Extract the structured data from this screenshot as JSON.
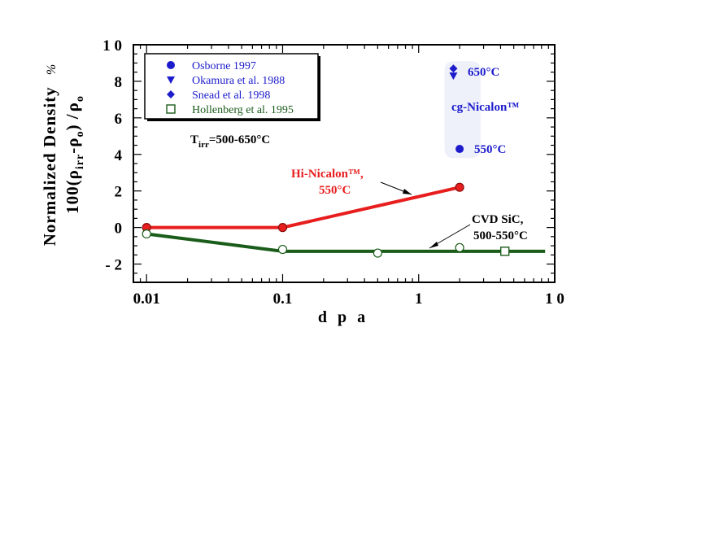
{
  "chart_data": {
    "type": "scatter",
    "x_scale": "log",
    "xlim": [
      0.008,
      10
    ],
    "ylim": [
      -3,
      10
    ],
    "x_ticks": [
      {
        "value": 0.01,
        "label": "0.01"
      },
      {
        "value": 0.1,
        "label": "0.1"
      },
      {
        "value": 1,
        "label": "1"
      },
      {
        "value": 10,
        "label": "1 0"
      }
    ],
    "y_ticks": [
      {
        "value": 10,
        "label": "1 0"
      },
      {
        "value": 8,
        "label": "8"
      },
      {
        "value": 6,
        "label": "6"
      },
      {
        "value": 4,
        "label": "4"
      },
      {
        "value": 2,
        "label": "2"
      },
      {
        "value": 0,
        "label": "0"
      },
      {
        "value": -2,
        "label": "- 2"
      }
    ],
    "xlabel": "d p a",
    "ylabel": {
      "line1": "Normalized  Density",
      "unit": "%",
      "line2_prefix": "100(",
      "rho": "ρ",
      "irr": "irr",
      "minus": "-",
      "o": "o",
      "close": ")  /"
    },
    "legend": {
      "position": "top-left",
      "entries": [
        {
          "label": "Osborne 1997",
          "marker": "circle-filled",
          "color": "#1c1ccc"
        },
        {
          "label": "Okamura et al. 1988",
          "marker": "triangle-down-filled",
          "color": "#1c1ccc"
        },
        {
          "label": "Snead et al. 1998",
          "marker": "diamond-filled",
          "color": "#1c1ccc"
        },
        {
          "label": "Hollenberg et al. 1995",
          "marker": "square-open",
          "color": "#1a5c1a"
        }
      ]
    },
    "series": [
      {
        "name": "Hi-Nicalon™",
        "color": "#e81e1e",
        "marker": "circle-filled-red",
        "points": [
          {
            "x": 0.01,
            "y": 0
          },
          {
            "x": 0.1,
            "y": 0
          },
          {
            "x": 2,
            "y": 2.2
          }
        ],
        "line": [
          {
            "x": 0.01,
            "y": 0
          },
          {
            "x": 0.1,
            "y": 0
          },
          {
            "x": 2,
            "y": 2.2
          }
        ]
      },
      {
        "name": "CVD SiC",
        "color": "#1a5c1a",
        "marker": "circle-open",
        "points": [
          {
            "x": 0.01,
            "y": -0.35
          },
          {
            "x": 0.1,
            "y": -1.2
          },
          {
            "x": 0.5,
            "y": -1.4
          },
          {
            "x": 2,
            "y": -1.1
          }
        ],
        "hollenberg_points": [
          {
            "x": 4.3,
            "y": -1.3
          }
        ],
        "line": [
          {
            "x": 0.01,
            "y": -0.35
          },
          {
            "x": 0.1,
            "y": -1.3
          },
          {
            "x": 8.5,
            "y": -1.3
          }
        ]
      },
      {
        "name": "cg-Nicalon™",
        "color": "#1c1ccc",
        "points": [
          {
            "x": 2,
            "y": 4.3,
            "marker": "circle-filled"
          },
          {
            "x": 1.8,
            "y": 8.3,
            "marker": "triangle-down-filled"
          },
          {
            "x": 1.8,
            "y": 8.7,
            "marker": "diamond-filled"
          }
        ]
      }
    ],
    "shaded_region": {
      "x": [
        1.55,
        2.85
      ],
      "y": [
        3.8,
        9.1
      ],
      "color": "#eef0fa"
    },
    "annotations": {
      "tirr_prefix": "T",
      "tirr_sub": "irr",
      "tirr_value": "=500-650°C",
      "hinicalon_line1": "Hi-Nicalon™,",
      "hinicalon_line2": "550°C",
      "cvd_line1": "CVD SiC,",
      "cvd_line2": "500-550°C",
      "temp_650": "650°C",
      "temp_550": "550°C",
      "cg_nicalon": "cg-Nicalon™"
    },
    "grid": false
  }
}
